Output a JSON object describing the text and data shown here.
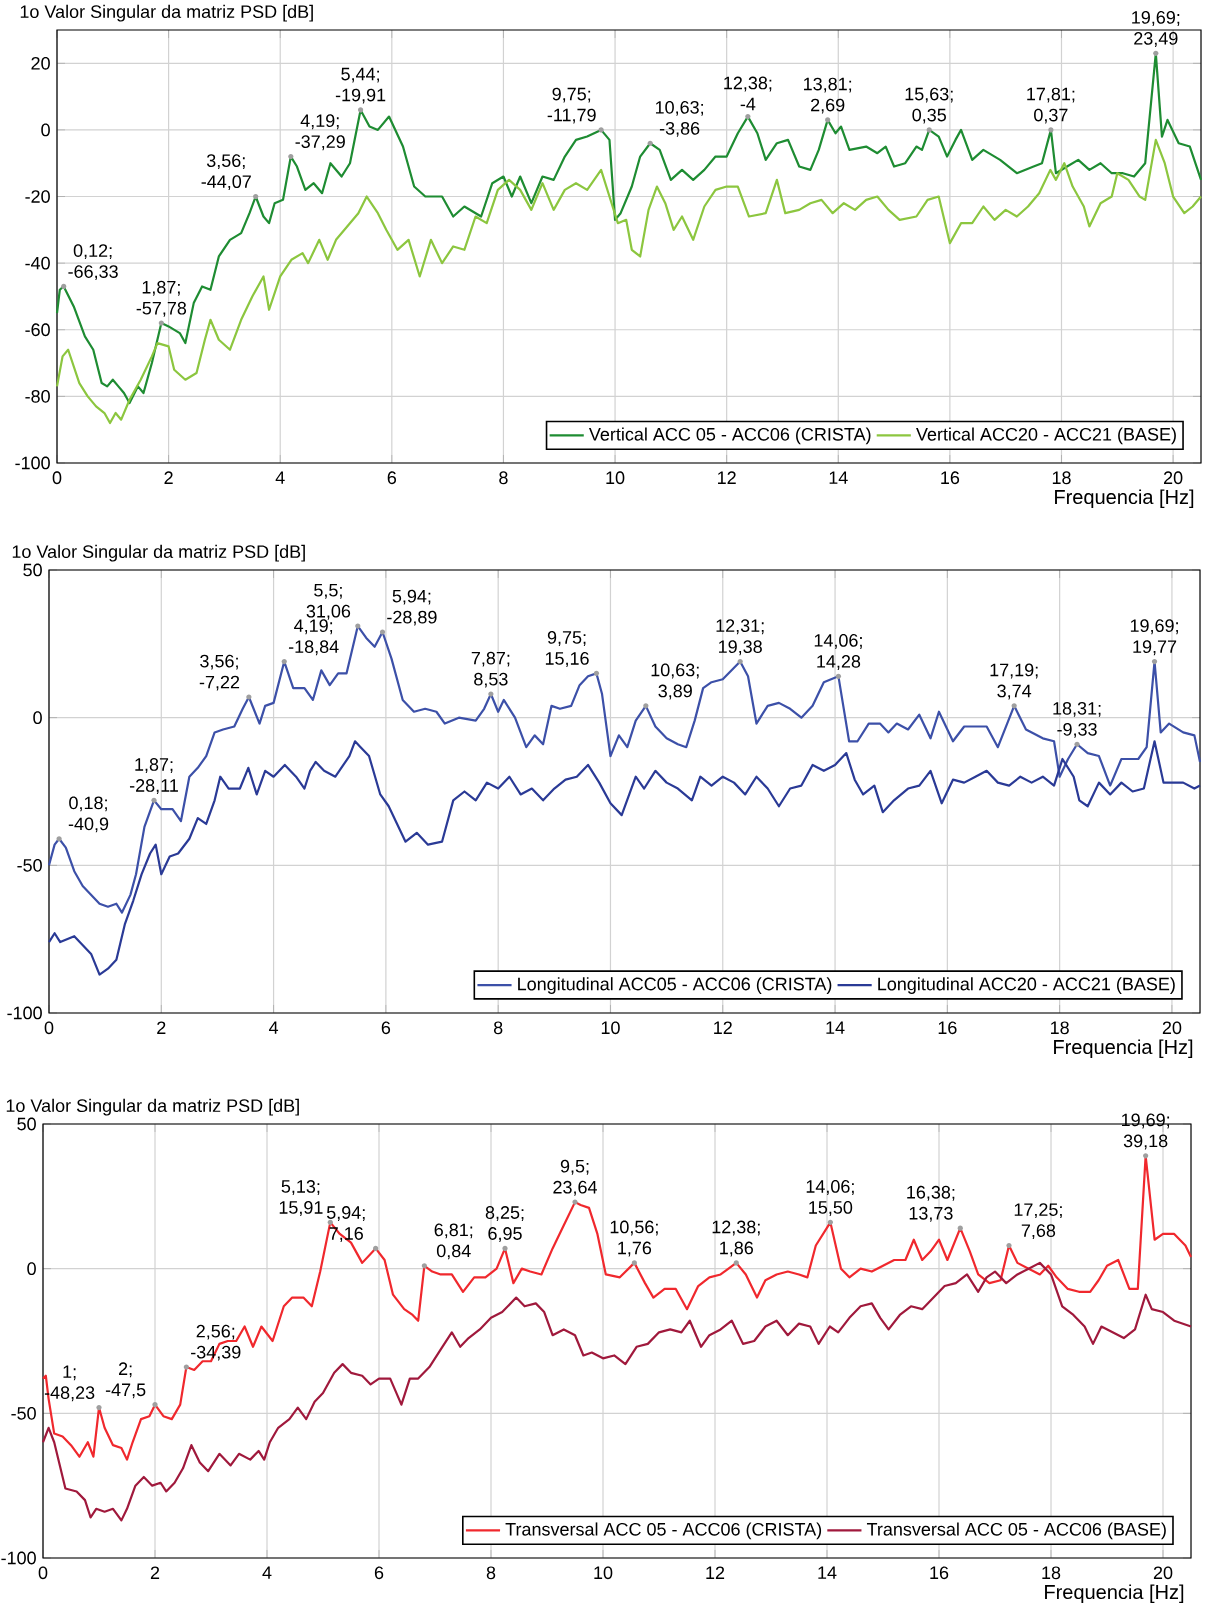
{
  "chart_data": [
    {
      "type": "line",
      "ylabel": "1o Valor Singular da matriz PSD [dB]",
      "xlabel": "Frequencia [Hz]",
      "xlim": [
        0,
        20.5
      ],
      "ylim": [
        -100,
        30
      ],
      "xticks": [
        0,
        2,
        4,
        6,
        8,
        10,
        12,
        14,
        16,
        18,
        20
      ],
      "yticks": [
        -100,
        -80,
        -60,
        -40,
        -20,
        0,
        20
      ],
      "grid": true,
      "legend": "bottom right",
      "series": [
        {
          "name": "Vertical ACC 05 - ACC06 (CRISTA)",
          "color": "#1e8c32",
          "x": [
            0,
            0.05,
            0.12,
            0.3,
            0.5,
            0.65,
            0.8,
            0.9,
            1.0,
            1.1,
            1.2,
            1.3,
            1.45,
            1.55,
            1.7,
            1.87,
            2.0,
            2.2,
            2.3,
            2.45,
            2.6,
            2.75,
            2.9,
            3.1,
            3.3,
            3.45,
            3.56,
            3.7,
            3.8,
            3.9,
            4.05,
            4.19,
            4.3,
            4.45,
            4.6,
            4.75,
            4.9,
            5.1,
            5.25,
            5.44,
            5.6,
            5.75,
            5.95,
            6.2,
            6.4,
            6.6,
            6.9,
            7.1,
            7.3,
            7.6,
            7.8,
            8.0,
            8.15,
            8.3,
            8.5,
            8.7,
            8.9,
            9.1,
            9.3,
            9.5,
            9.75,
            9.9,
            10.0,
            10.1,
            10.3,
            10.45,
            10.63,
            10.8,
            11.0,
            11.2,
            11.4,
            11.6,
            11.8,
            12.0,
            12.2,
            12.38,
            12.55,
            12.7,
            12.9,
            13.1,
            13.3,
            13.5,
            13.65,
            13.81,
            13.95,
            14.05,
            14.2,
            14.5,
            14.7,
            14.85,
            15.0,
            15.2,
            15.4,
            15.5,
            15.63,
            15.8,
            15.95,
            16.1,
            16.2,
            16.4,
            16.6,
            16.9,
            17.2,
            17.5,
            17.65,
            17.81,
            17.9,
            18.1,
            18.3,
            18.5,
            18.7,
            18.9,
            19.1,
            19.3,
            19.5,
            19.69,
            19.8,
            19.9,
            20.1,
            20.3,
            20.5
          ],
          "values": [
            -55,
            -48,
            -47,
            -53,
            -62,
            -66,
            -76,
            -77,
            -75,
            -77,
            -79,
            -82,
            -77,
            -79,
            -70,
            -58,
            -59,
            -61,
            -64,
            -52,
            -47,
            -48,
            -38,
            -33,
            -31,
            -25,
            -20,
            -26,
            -28,
            -22,
            -21,
            -8,
            -11,
            -18,
            -16,
            -19,
            -10,
            -14,
            -10,
            6,
            1,
            0,
            4,
            -5,
            -17,
            -20,
            -20,
            -26,
            -23,
            -26,
            -16,
            -14,
            -20,
            -14,
            -22,
            -14,
            -15,
            -8,
            -3,
            -2,
            0,
            -3,
            -27,
            -25,
            -17,
            -8,
            -4,
            -6,
            -15,
            -12,
            -15,
            -12,
            -8,
            -8,
            -1,
            4,
            -1,
            -9,
            -4,
            -3,
            -11,
            -12,
            -6,
            3,
            -1,
            1,
            -6,
            -5,
            -7,
            -5,
            -11,
            -10,
            -5,
            -6,
            0,
            -2,
            -8,
            -3,
            0,
            -9,
            -6,
            -9,
            -13,
            -11,
            -10,
            0,
            -13,
            -11,
            -9,
            -12,
            -10,
            -13,
            -13,
            -14,
            -10,
            23,
            -2,
            3,
            -4,
            -5,
            -15
          ]
        },
        {
          "name": "Vertical ACC20 - ACC21 (BASE)",
          "color": "#8cc63f",
          "x": [
            0,
            0.1,
            0.2,
            0.4,
            0.55,
            0.7,
            0.85,
            0.95,
            1.05,
            1.15,
            1.3,
            1.5,
            1.7,
            1.8,
            2.0,
            2.1,
            2.3,
            2.5,
            2.65,
            2.75,
            2.9,
            3.1,
            3.3,
            3.5,
            3.7,
            3.8,
            4.0,
            4.2,
            4.4,
            4.5,
            4.7,
            4.85,
            5.0,
            5.2,
            5.4,
            5.55,
            5.75,
            5.9,
            6.1,
            6.3,
            6.5,
            6.7,
            6.9,
            7.1,
            7.3,
            7.5,
            7.7,
            7.9,
            8.1,
            8.3,
            8.5,
            8.7,
            8.9,
            9.1,
            9.3,
            9.5,
            9.75,
            9.9,
            10.05,
            10.2,
            10.3,
            10.45,
            10.6,
            10.75,
            10.9,
            11.05,
            11.2,
            11.4,
            11.6,
            11.8,
            12.0,
            12.2,
            12.4,
            12.7,
            12.9,
            13.05,
            13.3,
            13.5,
            13.7,
            13.9,
            14.1,
            14.3,
            14.5,
            14.7,
            14.9,
            15.1,
            15.4,
            15.6,
            15.8,
            16.0,
            16.2,
            16.4,
            16.6,
            16.8,
            17.0,
            17.2,
            17.4,
            17.6,
            17.8,
            17.9,
            18.05,
            18.2,
            18.4,
            18.5,
            18.7,
            18.9,
            19.0,
            19.2,
            19.4,
            19.5,
            19.69,
            19.85,
            20.0,
            20.2,
            20.35,
            20.5
          ],
          "values": [
            -77,
            -68,
            -66,
            -76,
            -80,
            -83,
            -85,
            -88,
            -85,
            -87,
            -81,
            -75,
            -68,
            -64,
            -65,
            -72,
            -75,
            -73,
            -63,
            -57,
            -63,
            -66,
            -57,
            -50,
            -44,
            -54,
            -44,
            -39,
            -37,
            -40,
            -33,
            -39,
            -33,
            -29,
            -25,
            -20,
            -25,
            -30,
            -36,
            -33,
            -44,
            -33,
            -40,
            -35,
            -36,
            -26,
            -28,
            -18,
            -15,
            -18,
            -24,
            -16,
            -24,
            -18,
            -16,
            -18,
            -12,
            -20,
            -28,
            -27,
            -36,
            -38,
            -24,
            -17,
            -22,
            -30,
            -26,
            -33,
            -23,
            -18,
            -17,
            -17,
            -26,
            -25,
            -15,
            -25,
            -24,
            -22,
            -21,
            -25,
            -22,
            -24,
            -21,
            -20,
            -24,
            -27,
            -26,
            -21,
            -20,
            -34,
            -28,
            -28,
            -23,
            -27,
            -24,
            -26,
            -23,
            -19,
            -12,
            -15,
            -10,
            -17,
            -23,
            -29,
            -22,
            -20,
            -13,
            -15,
            -20,
            -21,
            -3,
            -10,
            -20,
            -25,
            -23,
            -20
          ]
        }
      ],
      "annotations": [
        {
          "text": "0,12; -66,33",
          "x": 0.12,
          "y": -47
        },
        {
          "text": "1,87; -57,78",
          "x": 1.87,
          "y": -58
        },
        {
          "text": "3,56; -44,07",
          "x": 3.56,
          "y": -20
        },
        {
          "text": "4,19; -37,29",
          "x": 4.19,
          "y": -8
        },
        {
          "text": "5,44; -19,91",
          "x": 5.44,
          "y": 6
        },
        {
          "text": "9,75; -11,79",
          "x": 9.75,
          "y": 0
        },
        {
          "text": "10,63; -3,86",
          "x": 10.63,
          "y": -4
        },
        {
          "text": "12,38; -4",
          "x": 12.38,
          "y": 4
        },
        {
          "text": "13,81; 2,69",
          "x": 13.81,
          "y": 3
        },
        {
          "text": "15,63; 0,35",
          "x": 15.63,
          "y": 0
        },
        {
          "text": "17,81; 0,37",
          "x": 17.81,
          "y": 0
        },
        {
          "text": "19,69; 23,49",
          "x": 19.69,
          "y": 23
        }
      ]
    },
    {
      "type": "line",
      "ylabel": "1o Valor Singular da matriz PSD [dB]",
      "xlabel": "Frequencia [Hz]",
      "xlim": [
        0,
        20.5
      ],
      "ylim": [
        -100,
        50
      ],
      "xticks": [
        0,
        2,
        4,
        6,
        8,
        10,
        12,
        14,
        16,
        18,
        20
      ],
      "yticks": [
        -100,
        -50,
        0,
        50
      ],
      "grid": true,
      "legend": "bottom right",
      "series": [
        {
          "name": "Longitudinal ACC05 - ACC06 (CRISTA)",
          "color": "#3c50a8",
          "x": [
            0,
            0.1,
            0.18,
            0.3,
            0.45,
            0.6,
            0.75,
            0.9,
            1.05,
            1.2,
            1.3,
            1.45,
            1.55,
            1.7,
            1.87,
            2.0,
            2.2,
            2.35,
            2.5,
            2.65,
            2.8,
            2.95,
            3.1,
            3.3,
            3.45,
            3.56,
            3.75,
            3.85,
            4.0,
            4.19,
            4.35,
            4.55,
            4.7,
            4.85,
            5.0,
            5.15,
            5.3,
            5.5,
            5.65,
            5.8,
            5.94,
            6.1,
            6.3,
            6.5,
            6.7,
            6.9,
            7.05,
            7.3,
            7.6,
            7.75,
            7.87,
            8.0,
            8.1,
            8.3,
            8.5,
            8.65,
            8.8,
            8.95,
            9.1,
            9.3,
            9.45,
            9.6,
            9.75,
            9.85,
            10.0,
            10.15,
            10.3,
            10.45,
            10.63,
            10.8,
            11.0,
            11.2,
            11.35,
            11.5,
            11.65,
            11.8,
            12.0,
            12.31,
            12.45,
            12.6,
            12.8,
            13.0,
            13.2,
            13.4,
            13.6,
            13.8,
            14.06,
            14.25,
            14.4,
            14.6,
            14.8,
            14.95,
            15.1,
            15.3,
            15.5,
            15.7,
            15.85,
            16.1,
            16.3,
            16.5,
            16.7,
            16.9,
            17.19,
            17.4,
            17.7,
            17.9,
            18.0,
            18.15,
            18.31,
            18.5,
            18.7,
            18.9,
            19.1,
            19.4,
            19.55,
            19.69,
            19.8,
            19.95,
            20.2,
            20.4,
            20.5
          ],
          "values": [
            -50,
            -43,
            -41,
            -44,
            -52,
            -57,
            -60,
            -63,
            -64,
            -63,
            -66,
            -60,
            -53,
            -37,
            -28,
            -31,
            -31,
            -35,
            -20,
            -17,
            -13,
            -5,
            -4,
            -3,
            3,
            7,
            -2,
            4,
            5,
            19,
            10,
            10,
            6,
            16,
            11,
            15,
            15,
            31,
            27,
            24,
            29,
            20,
            6,
            2,
            3,
            2,
            -2,
            0,
            -1,
            3,
            8,
            2,
            6,
            0,
            -10,
            -6,
            -9,
            4,
            3,
            4,
            11,
            14,
            15,
            8,
            -13,
            -6,
            -10,
            -1,
            4,
            -3,
            -7,
            -9,
            -10,
            -1,
            10,
            12,
            13,
            19,
            14,
            -2,
            4,
            5,
            3,
            0,
            4,
            12,
            14,
            -8,
            -8,
            -2,
            -2,
            -5,
            -2,
            -4,
            1,
            -7,
            2,
            -8,
            -3,
            -3,
            -3,
            -10,
            4,
            -4,
            -7,
            -8,
            -20,
            -14,
            -9,
            -12,
            -13,
            -23,
            -14,
            -14,
            -10,
            19,
            -5,
            -2,
            -5,
            -6,
            -15
          ]
        },
        {
          "name": "Longitudinal ACC20 - ACC21 (BASE)",
          "color": "#2a3a96",
          "x": [
            0,
            0.1,
            0.2,
            0.45,
            0.6,
            0.75,
            0.9,
            1.05,
            1.2,
            1.35,
            1.5,
            1.65,
            1.8,
            1.9,
            2.0,
            2.15,
            2.3,
            2.5,
            2.65,
            2.8,
            2.95,
            3.05,
            3.2,
            3.4,
            3.55,
            3.7,
            3.85,
            4.0,
            4.2,
            4.4,
            4.55,
            4.65,
            4.75,
            4.9,
            5.1,
            5.35,
            5.45,
            5.55,
            5.7,
            5.9,
            6.05,
            6.2,
            6.35,
            6.55,
            6.75,
            7.0,
            7.2,
            7.4,
            7.6,
            7.8,
            8.0,
            8.2,
            8.4,
            8.6,
            8.8,
            9.0,
            9.2,
            9.4,
            9.6,
            9.8,
            10.0,
            10.2,
            10.45,
            10.6,
            10.8,
            11.0,
            11.2,
            11.45,
            11.6,
            11.8,
            12.0,
            12.2,
            12.4,
            12.6,
            12.8,
            13.0,
            13.2,
            13.4,
            13.6,
            13.8,
            14.0,
            14.2,
            14.35,
            14.5,
            14.7,
            14.85,
            15.05,
            15.3,
            15.5,
            15.7,
            15.9,
            16.1,
            16.3,
            16.5,
            16.7,
            16.9,
            17.1,
            17.3,
            17.5,
            17.7,
            17.9,
            18.05,
            18.25,
            18.35,
            18.5,
            18.7,
            18.9,
            19.1,
            19.3,
            19.5,
            19.69,
            19.85,
            20.0,
            20.2,
            20.4,
            20.5
          ],
          "values": [
            -76,
            -73,
            -76,
            -74,
            -77,
            -80,
            -87,
            -85,
            -82,
            -70,
            -62,
            -53,
            -46,
            -43,
            -53,
            -47,
            -46,
            -41,
            -34,
            -36,
            -28,
            -20,
            -24,
            -24,
            -17,
            -26,
            -18,
            -20,
            -16,
            -20,
            -24,
            -18,
            -15,
            -18,
            -20,
            -13,
            -8,
            -10,
            -13,
            -26,
            -30,
            -36,
            -42,
            -39,
            -43,
            -42,
            -28,
            -25,
            -28,
            -22,
            -24,
            -20,
            -26,
            -24,
            -28,
            -24,
            -21,
            -20,
            -16,
            -22,
            -29,
            -33,
            -20,
            -24,
            -18,
            -22,
            -24,
            -28,
            -20,
            -23,
            -20,
            -22,
            -26,
            -20,
            -24,
            -30,
            -24,
            -23,
            -16,
            -18,
            -16,
            -12,
            -21,
            -26,
            -23,
            -32,
            -28,
            -24,
            -23,
            -18,
            -29,
            -21,
            -22,
            -20,
            -18,
            -22,
            -23,
            -20,
            -22,
            -20,
            -23,
            -14,
            -20,
            -28,
            -30,
            -22,
            -26,
            -22,
            -25,
            -24,
            -8,
            -22,
            -22,
            -22,
            -24,
            -23
          ]
        }
      ],
      "annotations": [
        {
          "text": "0,18; -40,9",
          "x": 0.18,
          "y": -41
        },
        {
          "text": "1,87; -28,11",
          "x": 1.87,
          "y": -28
        },
        {
          "text": "3,56; -7,22",
          "x": 3.56,
          "y": 7
        },
        {
          "text": "4,19; -18,84",
          "x": 4.19,
          "y": 19
        },
        {
          "text": "5,5; 31,06",
          "x": 5.5,
          "y": 31
        },
        {
          "text": "5,94; -28,89",
          "x": 5.94,
          "y": 29
        },
        {
          "text": "7,87; 8,53",
          "x": 7.87,
          "y": 8
        },
        {
          "text": "9,75; 15,16",
          "x": 9.75,
          "y": 15
        },
        {
          "text": "10,63; 3,89",
          "x": 10.63,
          "y": 4
        },
        {
          "text": "12,31; 19,38",
          "x": 12.31,
          "y": 19
        },
        {
          "text": "14,06; 14,28",
          "x": 14.06,
          "y": 14
        },
        {
          "text": "17,19; 3,74",
          "x": 17.19,
          "y": 4
        },
        {
          "text": "18,31; -9,33",
          "x": 18.31,
          "y": -9
        },
        {
          "text": "19,69; 19,77",
          "x": 19.69,
          "y": 19
        }
      ]
    },
    {
      "type": "line",
      "ylabel": "1o Valor Singular da matriz PSD [dB]",
      "xlabel": "Frequencia [Hz]",
      "xlim": [
        0,
        20.5
      ],
      "ylim": [
        -100,
        50
      ],
      "xticks": [
        0,
        2,
        4,
        6,
        8,
        10,
        12,
        14,
        16,
        18,
        20
      ],
      "yticks": [
        -100,
        -50,
        0,
        50
      ],
      "grid": true,
      "legend": "bottom right",
      "series": [
        {
          "name": "Transversal ACC 05 - ACC06 (CRISTA)",
          "color": "#f0282d",
          "x": [
            0,
            0.05,
            0.1,
            0.2,
            0.35,
            0.5,
            0.65,
            0.8,
            0.9,
            1.0,
            1.1,
            1.25,
            1.4,
            1.5,
            1.6,
            1.75,
            1.9,
            2.0,
            2.15,
            2.3,
            2.45,
            2.56,
            2.7,
            2.85,
            3.0,
            3.15,
            3.3,
            3.45,
            3.6,
            3.75,
            3.9,
            4.1,
            4.3,
            4.45,
            4.65,
            4.8,
            4.95,
            5.13,
            5.3,
            5.5,
            5.7,
            5.94,
            6.1,
            6.25,
            6.45,
            6.6,
            6.7,
            6.81,
            6.95,
            7.1,
            7.3,
            7.5,
            7.7,
            7.9,
            8.1,
            8.25,
            8.4,
            8.55,
            8.7,
            8.9,
            9.1,
            9.3,
            9.5,
            9.6,
            9.75,
            9.9,
            10.05,
            10.3,
            10.56,
            10.75,
            10.9,
            11.1,
            11.3,
            11.5,
            11.7,
            11.9,
            12.1,
            12.38,
            12.55,
            12.75,
            12.9,
            13.1,
            13.3,
            13.5,
            13.65,
            13.8,
            14.06,
            14.25,
            14.4,
            14.6,
            14.8,
            15.0,
            15.2,
            15.4,
            15.55,
            15.7,
            15.85,
            16.0,
            16.15,
            16.38,
            16.55,
            16.7,
            16.9,
            17.1,
            17.25,
            17.4,
            17.6,
            17.8,
            17.95,
            18.1,
            18.3,
            18.5,
            18.7,
            18.85,
            19.0,
            19.2,
            19.4,
            19.55,
            19.69,
            19.85,
            20.0,
            20.2,
            20.4,
            20.5
          ],
          "values": [
            -38,
            -37,
            -45,
            -57,
            -58,
            -61,
            -65,
            -60,
            -65,
            -48,
            -55,
            -61,
            -62,
            -66,
            -60,
            -52,
            -51,
            -47,
            -51,
            -52,
            -47,
            -34,
            -35,
            -32,
            -32,
            -26,
            -25,
            -25,
            -20,
            -27,
            -20,
            -25,
            -13,
            -10,
            -10,
            -13,
            -1,
            16,
            12,
            9,
            2,
            7,
            3,
            -9,
            -14,
            -16,
            -18,
            1,
            -1,
            -2,
            -2,
            -8,
            -3,
            -3,
            0,
            7,
            -5,
            0,
            -1,
            -2,
            7,
            15,
            23,
            22,
            21,
            12,
            -2,
            -3,
            2,
            -5,
            -10,
            -7,
            -7,
            -14,
            -6,
            -3,
            -2,
            2,
            -2,
            -10,
            -4,
            -2,
            -1,
            -2,
            -3,
            8,
            16,
            0,
            -3,
            0,
            -1,
            1,
            3,
            3,
            10,
            3,
            6,
            10,
            3,
            14,
            6,
            -2,
            -5,
            -4,
            8,
            2,
            0,
            -2,
            1,
            -3,
            -7,
            -8,
            -8,
            -4,
            1,
            3,
            -7,
            -7,
            39,
            10,
            12,
            12,
            8,
            4
          ]
        },
        {
          "name": "Transversal ACC 05 - ACC06 (BASE)",
          "color": "#a0193c",
          "x": [
            0,
            0.1,
            0.2,
            0.4,
            0.6,
            0.75,
            0.85,
            0.95,
            1.1,
            1.25,
            1.4,
            1.5,
            1.65,
            1.8,
            1.95,
            2.1,
            2.2,
            2.35,
            2.5,
            2.65,
            2.8,
            2.95,
            3.15,
            3.35,
            3.5,
            3.7,
            3.85,
            3.95,
            4.05,
            4.2,
            4.4,
            4.55,
            4.7,
            4.85,
            5.0,
            5.2,
            5.35,
            5.5,
            5.7,
            5.85,
            6.0,
            6.2,
            6.4,
            6.55,
            6.7,
            6.9,
            7.1,
            7.3,
            7.45,
            7.6,
            7.8,
            8.0,
            8.2,
            8.45,
            8.6,
            8.8,
            8.95,
            9.1,
            9.3,
            9.5,
            9.65,
            9.8,
            10.0,
            10.2,
            10.4,
            10.6,
            10.8,
            11.0,
            11.2,
            11.4,
            11.55,
            11.75,
            11.9,
            12.1,
            12.3,
            12.5,
            12.7,
            12.9,
            13.1,
            13.3,
            13.5,
            13.7,
            13.85,
            14.05,
            14.2,
            14.4,
            14.6,
            14.8,
            14.95,
            15.1,
            15.3,
            15.5,
            15.7,
            15.9,
            16.1,
            16.3,
            16.5,
            16.7,
            16.85,
            17.0,
            17.2,
            17.4,
            17.6,
            17.8,
            18.0,
            18.2,
            18.4,
            18.6,
            18.75,
            18.9,
            19.1,
            19.3,
            19.5,
            19.69,
            19.8,
            20.0,
            20.2,
            20.5
          ],
          "values": [
            -60,
            -55,
            -60,
            -76,
            -77,
            -80,
            -86,
            -83,
            -84,
            -83,
            -87,
            -83,
            -75,
            -72,
            -75,
            -74,
            -77,
            -74,
            -69,
            -61,
            -67,
            -70,
            -64,
            -68,
            -64,
            -66,
            -63,
            -66,
            -60,
            -55,
            -52,
            -48,
            -52,
            -46,
            -43,
            -36,
            -33,
            -36,
            -37,
            -40,
            -38,
            -38,
            -47,
            -38,
            -38,
            -34,
            -28,
            -22,
            -27,
            -24,
            -21,
            -17,
            -15,
            -10,
            -13,
            -12,
            -15,
            -23,
            -21,
            -23,
            -30,
            -29,
            -31,
            -30,
            -33,
            -27,
            -26,
            -22,
            -21,
            -22,
            -18,
            -27,
            -23,
            -21,
            -18,
            -26,
            -25,
            -20,
            -18,
            -23,
            -19,
            -20,
            -26,
            -20,
            -22,
            -17,
            -13,
            -12,
            -17,
            -21,
            -16,
            -13,
            -14,
            -10,
            -6,
            -5,
            -2,
            -8,
            -3,
            -1,
            -5,
            -2,
            0,
            2,
            -2,
            -13,
            -16,
            -20,
            -26,
            -20,
            -22,
            -24,
            -21,
            -9,
            -14,
            -15,
            -18,
            -20
          ]
        }
      ],
      "annotations": [
        {
          "text": "1; -48,23",
          "x": 1,
          "y": -48
        },
        {
          "text": "2; -47,5",
          "x": 2,
          "y": -47
        },
        {
          "text": "2,56; -34,39",
          "x": 2.56,
          "y": -34
        },
        {
          "text": "5,13; 15,91",
          "x": 5.13,
          "y": 16
        },
        {
          "text": "5,94; 7,16",
          "x": 5.94,
          "y": 7
        },
        {
          "text": "6,81; 0,84",
          "x": 6.81,
          "y": 1
        },
        {
          "text": "8,25; 6,95",
          "x": 8.25,
          "y": 7
        },
        {
          "text": "9,5; 23,64",
          "x": 9.5,
          "y": 23
        },
        {
          "text": "10,56; 1,76",
          "x": 10.56,
          "y": 2
        },
        {
          "text": "12,38; 1,86",
          "x": 12.38,
          "y": 2
        },
        {
          "text": "14,06; 15,50",
          "x": 14.06,
          "y": 16
        },
        {
          "text": "16,38; 13,73",
          "x": 16.38,
          "y": 14
        },
        {
          "text": "17,25; 7,68",
          "x": 17.25,
          "y": 8
        },
        {
          "text": "19,69; 39,18",
          "x": 19.69,
          "y": 39
        }
      ]
    }
  ]
}
